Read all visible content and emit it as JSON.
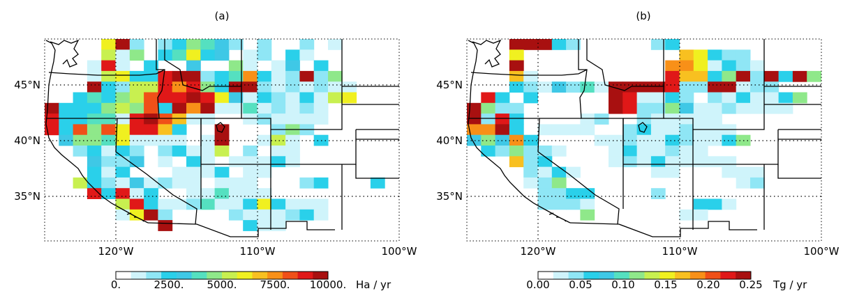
{
  "panels": [
    {
      "id": "a",
      "title": "(a)",
      "colorbar": {
        "tick_labels": [
          "0.",
          "2500.",
          "5000.",
          "7500.",
          "10000."
        ],
        "unit": "Ha / yr"
      },
      "cells": [
        [
          0,
          4,
          13
        ],
        [
          2,
          3,
          6
        ],
        [
          0,
          5,
          3
        ],
        [
          1,
          5,
          2
        ],
        [
          0,
          6,
          2
        ],
        [
          2,
          6,
          5
        ],
        [
          3,
          0,
          9
        ],
        [
          5,
          0,
          8
        ],
        [
          4,
          1,
          4
        ],
        [
          3,
          1,
          10
        ],
        [
          4,
          1,
          2
        ],
        [
          5,
          2,
          8
        ],
        [
          6,
          2,
          8
        ],
        [
          7,
          2,
          3
        ],
        [
          8,
          2,
          4
        ],
        [
          9,
          2,
          2
        ],
        [
          11,
          2,
          4
        ],
        [
          12,
          2,
          1
        ],
        [
          0,
          3,
          3
        ],
        [
          3,
          3,
          9
        ],
        [
          5,
          3,
          3
        ],
        [
          6,
          3,
          4
        ],
        [
          7,
          3,
          5
        ],
        [
          8,
          3,
          11
        ],
        [
          9,
          3,
          11
        ],
        [
          10,
          3,
          12
        ],
        [
          0,
          4,
          13
        ],
        [
          2,
          4,
          4
        ],
        [
          6,
          4,
          7
        ],
        [
          7,
          4,
          7
        ],
        [
          8,
          4,
          13
        ],
        [
          9,
          4,
          13
        ],
        [
          10,
          4,
          13
        ],
        [
          11,
          4,
          12
        ],
        [
          0,
          5,
          3
        ],
        [
          3,
          5,
          9
        ],
        [
          5,
          5,
          4
        ],
        [
          6,
          5,
          5
        ],
        [
          7,
          5,
          9
        ],
        [
          8,
          5,
          8
        ],
        [
          9,
          5,
          12
        ],
        [
          10,
          5,
          12
        ],
        [
          11,
          5,
          12
        ],
        [
          12,
          5,
          9
        ],
        [
          4,
          5,
          12
        ],
        [
          5,
          6,
          12
        ],
        [
          0,
          6,
          2
        ],
        [
          3,
          6,
          10
        ],
        [
          5,
          6,
          4
        ],
        [
          6,
          6,
          9
        ],
        [
          7,
          6,
          11
        ],
        [
          8,
          6,
          11
        ],
        [
          9,
          6,
          3
        ],
        [
          10,
          6,
          8
        ],
        [
          0,
          7,
          12
        ],
        [
          1,
          7,
          13
        ],
        [
          2,
          7,
          13
        ],
        [
          3,
          7,
          3
        ],
        [
          4,
          7,
          2
        ],
        [
          5,
          7,
          3
        ],
        [
          6,
          7,
          3
        ],
        [
          7,
          7,
          10
        ],
        [
          8,
          7,
          9
        ],
        [
          9,
          7,
          8
        ],
        [
          0,
          8,
          11
        ],
        [
          1,
          8,
          4
        ],
        [
          2,
          8,
          3
        ],
        [
          3,
          8,
          11
        ],
        [
          4,
          8,
          10
        ],
        [
          5,
          8,
          10
        ],
        [
          6,
          8,
          11
        ],
        [
          7,
          8,
          7
        ],
        [
          8,
          8,
          3
        ],
        [
          9,
          8,
          12
        ],
        [
          1,
          9,
          3
        ],
        [
          2,
          9,
          7
        ],
        [
          3,
          9,
          5
        ],
        [
          4,
          9,
          6
        ],
        [
          5,
          9,
          5
        ],
        [
          6,
          9,
          8
        ],
        [
          7,
          9,
          2
        ],
        [
          8,
          9,
          6
        ],
        [
          9,
          9,
          3
        ],
        [
          2,
          10,
          5
        ],
        [
          3,
          10,
          3
        ],
        [
          4,
          10,
          2
        ],
        [
          5,
          10,
          5
        ],
        [
          6,
          10,
          2
        ],
        [
          7,
          10,
          1
        ],
        [
          3,
          11,
          4
        ],
        [
          4,
          11,
          2
        ],
        [
          5,
          11,
          1
        ],
        [
          6,
          11,
          6
        ],
        [
          7,
          11,
          3
        ],
        [
          3,
          12,
          3
        ],
        [
          6,
          12,
          3
        ],
        [
          7,
          12,
          2
        ],
        [
          4,
          13,
          1
        ],
        [
          5,
          13,
          4
        ],
        [
          7,
          13,
          3
        ],
        [
          1,
          14,
          5
        ],
        [
          2,
          14,
          12
        ],
        [
          3,
          14,
          5
        ],
        [
          4,
          14,
          12
        ],
        [
          1,
          15,
          6
        ],
        [
          3,
          15,
          2
        ],
        [
          4,
          15,
          3
        ],
        [
          5,
          15,
          11
        ],
        [
          1,
          16,
          6
        ],
        [
          2,
          16,
          6
        ],
        [
          3,
          16,
          4
        ],
        [
          4,
          16,
          7
        ],
        [
          5,
          16,
          1
        ],
        [
          6,
          17,
          12
        ],
        [
          7,
          17,
          13
        ]
      ]
    },
    {
      "id": "b",
      "title": "(b)",
      "colorbar": {
        "tick_labels": [
          "0.00",
          "0.05",
          "0.10",
          "0.15",
          "0.20",
          "0.25"
        ],
        "unit": "Tg / yr"
      },
      "cells": []
    }
  ],
  "axes": {
    "lat_labels": [
      "45°N",
      "40°N",
      "35°N"
    ],
    "lon_labels": [
      "120°W",
      "110°W",
      "100°W"
    ]
  }
}
